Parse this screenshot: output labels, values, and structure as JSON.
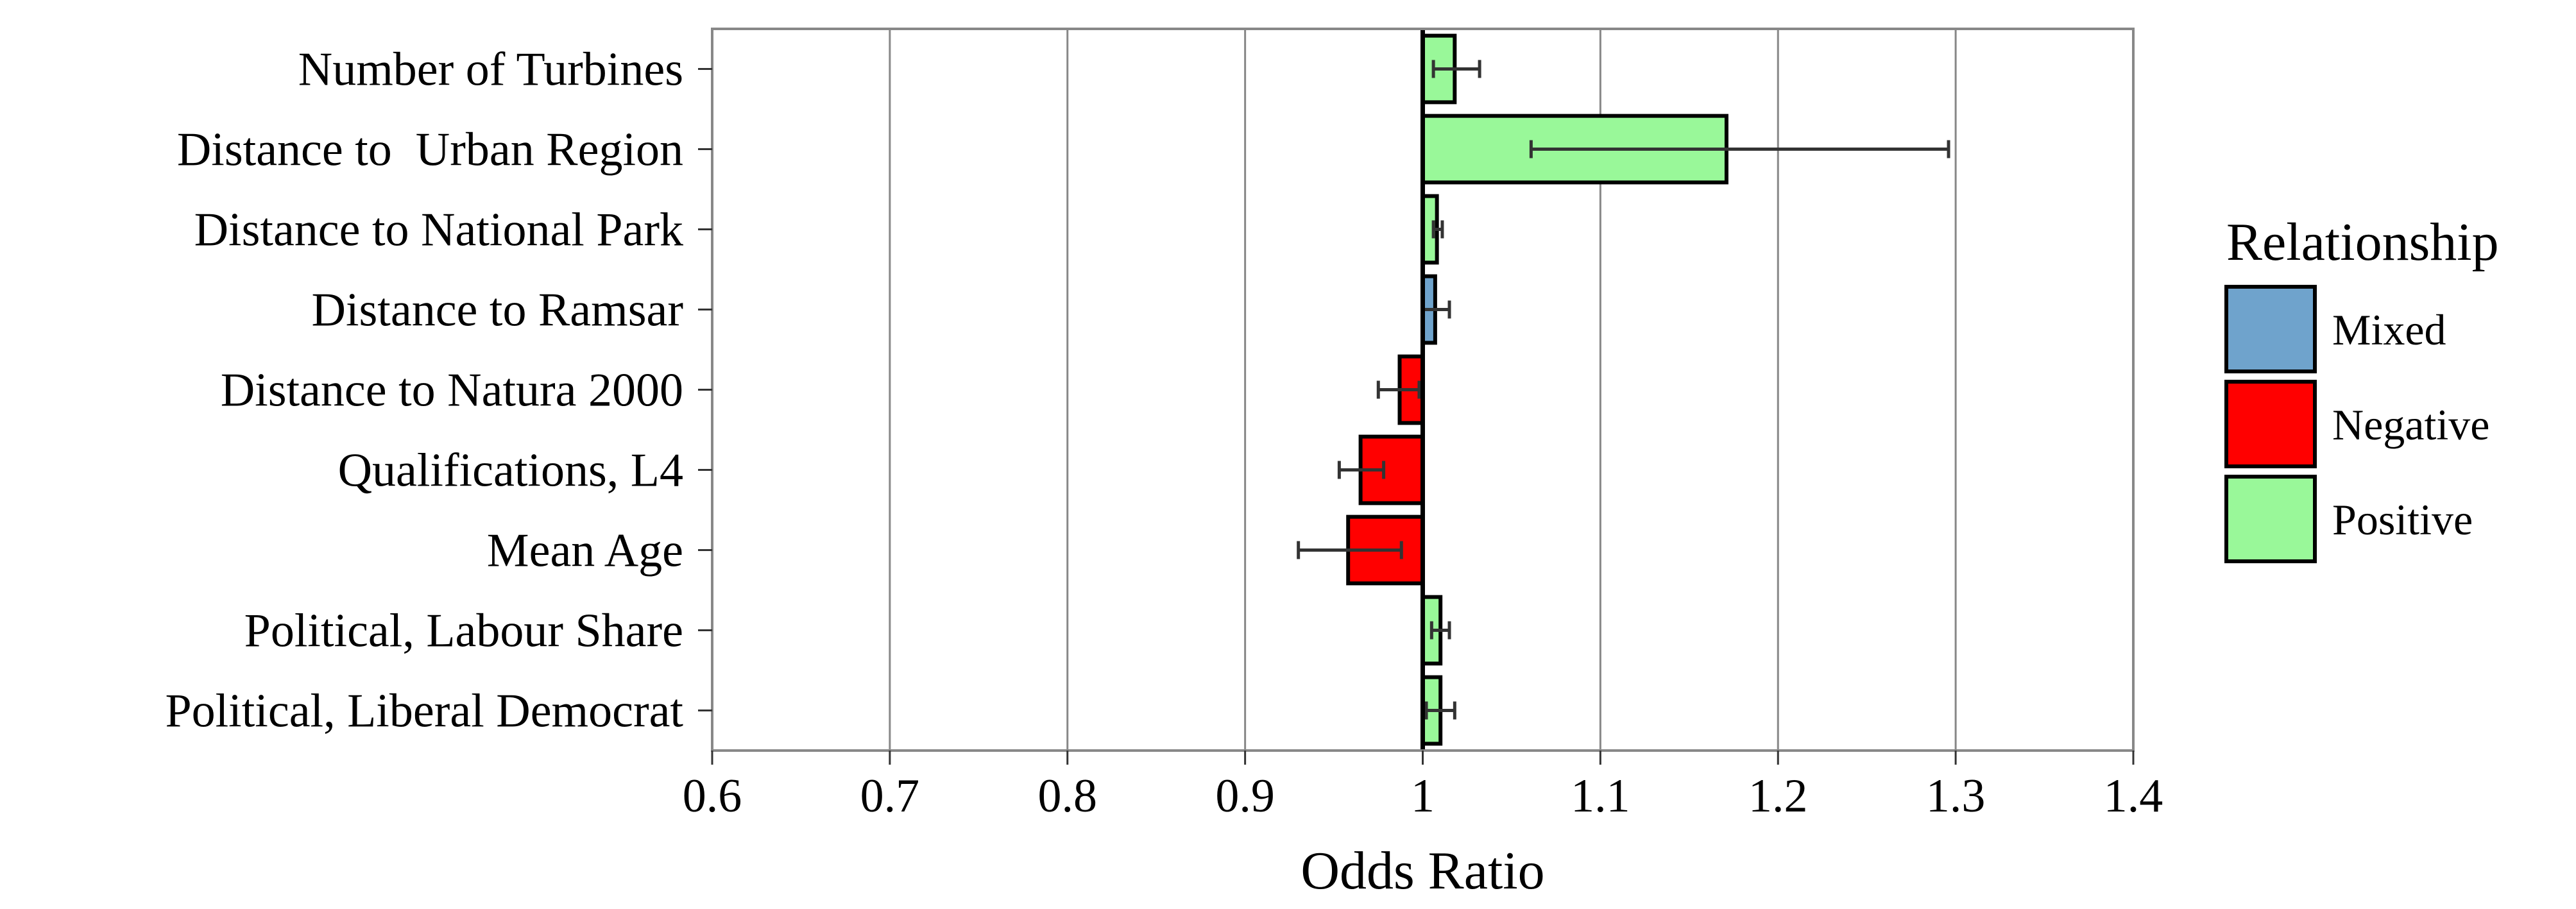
{
  "chart_data": {
    "type": "bar",
    "orientation": "horizontal",
    "xlabel": "Odds Ratio",
    "xlim": [
      0.6,
      1.4
    ],
    "x_ticks": [
      "0.6",
      "0.7",
      "0.8",
      "0.9",
      "1",
      "1.1",
      "1.2",
      "1.3",
      "1.4"
    ],
    "reference_line": 1.0,
    "grid": true,
    "categories": [
      "Number of Turbines",
      "Distance to  Urban Region",
      "Distance to National Park",
      "Distance to Ramsar",
      "Distance to Natura 2000",
      "Qualifications, L4",
      "Mean Age",
      "Political, Labour Share",
      "Political, Liberal Democrat"
    ],
    "values": [
      1.018,
      1.171,
      1.008,
      1.007,
      0.987,
      0.965,
      0.958,
      1.01,
      1.01
    ],
    "error_low": [
      1.006,
      1.061,
      1.006,
      1.0,
      0.975,
      0.953,
      0.93,
      1.005,
      1.002
    ],
    "error_high": [
      1.032,
      1.296,
      1.011,
      1.015,
      0.998,
      0.978,
      0.988,
      1.015,
      1.018
    ],
    "relationship": [
      "Positive",
      "Positive",
      "Positive",
      "Mixed",
      "Negative",
      "Negative",
      "Negative",
      "Positive",
      "Positive"
    ],
    "legend": {
      "title": "Relationship",
      "position": "right",
      "entries": [
        {
          "label": "Mixed",
          "color": "#6fa3cc"
        },
        {
          "label": "Negative",
          "color": "#ff0000"
        },
        {
          "label": "Positive",
          "color": "#99f899"
        }
      ]
    }
  }
}
